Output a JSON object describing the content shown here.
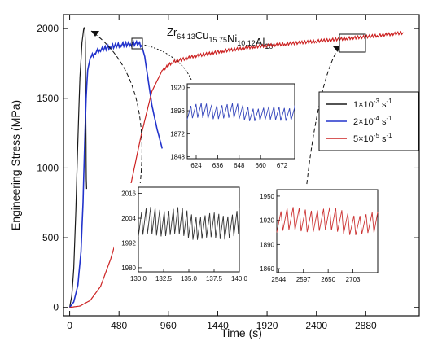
{
  "chart_data": {
    "type": "line",
    "title": "Zr64.13Cu15.75Ni10.12Al10",
    "title_parts": [
      {
        "t": "Zr",
        "sub": "64.13"
      },
      {
        "t": "Cu",
        "sub": "15.75"
      },
      {
        "t": "Ni",
        "sub": "10.12"
      },
      {
        "t": "Al",
        "sub": "10"
      }
    ],
    "xlabel": "Time (s)",
    "ylabel": "Engineering Stress (MPa)",
    "xlim": [
      -60,
      3400
    ],
    "ylim": [
      -60,
      2100
    ],
    "xticks": [
      "0",
      "480",
      "960",
      "1440",
      "1920",
      "2400",
      "2880"
    ],
    "yticks": [
      "0",
      "500",
      "1000",
      "1500",
      "2000"
    ],
    "legend_position": "right",
    "series": [
      {
        "name": "1×10⁻³ s⁻¹",
        "legend": {
          "base": "1×10",
          "exp1": "-3",
          "mid": " s",
          "exp2": "-1"
        },
        "color": "#1a1a1a",
        "points": [
          [
            0,
            0
          ],
          [
            20,
            80
          ],
          [
            40,
            280
          ],
          [
            60,
            700
          ],
          [
            80,
            1200
          ],
          [
            100,
            1650
          ],
          [
            120,
            1900
          ],
          [
            135,
            1990
          ],
          [
            140,
            2005
          ],
          [
            148,
            1995
          ],
          [
            152,
            1900
          ],
          [
            155,
            1600
          ],
          [
            158,
            1300
          ],
          [
            160,
            1050
          ],
          [
            162,
            920
          ],
          [
            165,
            850
          ]
        ]
      },
      {
        "name": "2×10⁻⁴ s⁻¹",
        "legend": {
          "base": "2×10",
          "exp1": "-4",
          "mid": " s",
          "exp2": "-1"
        },
        "color": "#2233cc",
        "points": [
          [
            0,
            0
          ],
          [
            40,
            40
          ],
          [
            80,
            160
          ],
          [
            110,
            400
          ],
          [
            130,
            750
          ],
          [
            145,
            1150
          ],
          [
            160,
            1500
          ],
          [
            175,
            1700
          ],
          [
            200,
            1790
          ],
          [
            250,
            1830
          ],
          [
            300,
            1850
          ],
          [
            400,
            1870
          ],
          [
            500,
            1885
          ],
          [
            600,
            1890
          ],
          [
            660,
            1895
          ],
          [
            700,
            1880
          ],
          [
            730,
            1800
          ],
          [
            760,
            1650
          ],
          [
            800,
            1450
          ],
          [
            850,
            1280
          ],
          [
            900,
            1140
          ]
        ]
      },
      {
        "name": "5×10⁻⁵ s⁻¹",
        "legend": {
          "base": "5×10",
          "exp1": "-5",
          "mid": " s",
          "exp2": "-1"
        },
        "color": "#cc2222",
        "points": [
          [
            0,
            0
          ],
          [
            100,
            10
          ],
          [
            200,
            50
          ],
          [
            300,
            150
          ],
          [
            400,
            350
          ],
          [
            500,
            600
          ],
          [
            600,
            900
          ],
          [
            700,
            1250
          ],
          [
            800,
            1550
          ],
          [
            900,
            1700
          ],
          [
            1000,
            1760
          ],
          [
            1200,
            1800
          ],
          [
            1500,
            1840
          ],
          [
            1800,
            1870
          ],
          [
            2100,
            1890
          ],
          [
            2400,
            1910
          ],
          [
            2700,
            1930
          ],
          [
            3000,
            1950
          ],
          [
            3250,
            1970
          ]
        ]
      }
    ],
    "insets": [
      {
        "name": "inset-blue",
        "series_color": "#3344bb",
        "xticks": [
          "624",
          "636",
          "648",
          "660",
          "672"
        ],
        "xtick_values": [
          624,
          636,
          648,
          660,
          672
        ],
        "yticks": [
          "1848",
          "1872",
          "1896",
          "1920"
        ],
        "ytick_values": [
          1848,
          1872,
          1896,
          1920
        ],
        "xlim": [
          619,
          679
        ],
        "ylim": [
          1846,
          1924
        ],
        "base": 1894,
        "amp": 7,
        "period": 2.9
      },
      {
        "name": "inset-black",
        "series_color": "#333333",
        "xticks": [
          "130.0",
          "132.5",
          "135.0",
          "137.5",
          "140.0"
        ],
        "xtick_values": [
          130.0,
          132.5,
          135.0,
          137.5,
          140.0
        ],
        "yticks": [
          "1980",
          "1992",
          "2004",
          "2016"
        ],
        "ytick_values": [
          1980,
          1992,
          2004,
          2016
        ],
        "xlim": [
          130.0,
          140.0
        ],
        "ylim": [
          1978,
          2019
        ],
        "base": 2001,
        "amp": 6,
        "period": 0.45
      },
      {
        "name": "inset-red",
        "series_color": "#cc3333",
        "xticks": [
          "2544",
          "2597",
          "2650",
          "2703"
        ],
        "xtick_values": [
          2544,
          2597,
          2650,
          2703
        ],
        "yticks": [
          "1860",
          "1890",
          "1920",
          "1950"
        ],
        "ytick_values": [
          1860,
          1890,
          1920,
          1950
        ],
        "xlim": [
          2540,
          2756
        ],
        "ylim": [
          1855,
          1958
        ],
        "base": 1918,
        "amp": 13,
        "period": 13
      }
    ]
  }
}
